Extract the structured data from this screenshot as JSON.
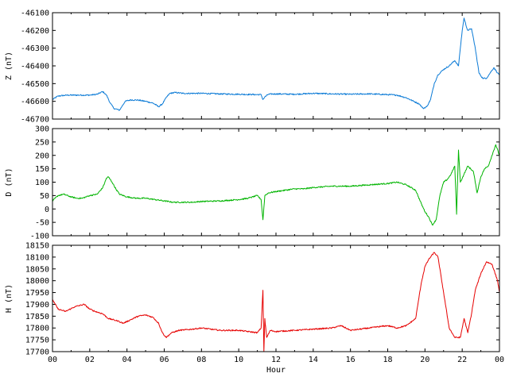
{
  "chart_data": [
    {
      "type": "line",
      "ylabel": "Z (nT)",
      "ylim": [
        -46700,
        -46100
      ],
      "yticks": [
        -46100,
        -46200,
        -46300,
        -46400,
        -46500,
        -46600,
        -46700
      ],
      "xlim": [
        0,
        24
      ],
      "color": "#0a7ad6",
      "series": [
        {
          "x": [
            0,
            0.3,
            0.8,
            1.5,
            2.0,
            2.4,
            2.7,
            2.9,
            3.1,
            3.3,
            3.6,
            3.9,
            4.2,
            4.6,
            5.0,
            5.4,
            5.7,
            5.9,
            6.1,
            6.3,
            6.6,
            7.0,
            8.0,
            9.0,
            10.0,
            11.0,
            11.2,
            11.3,
            11.4,
            11.6,
            12.0,
            13.0,
            14.0,
            15.0,
            16.0,
            17.0,
            18.0,
            18.5,
            19.0,
            19.4,
            19.7,
            19.9,
            20.1,
            20.3,
            20.5,
            20.7,
            21.0,
            21.3,
            21.6,
            21.8,
            21.9,
            22.0,
            22.1,
            22.2,
            22.3,
            22.5,
            22.7,
            22.9,
            23.1,
            23.3,
            23.5,
            23.7,
            23.9,
            24.0
          ],
          "y": [
            -46590,
            -46570,
            -46565,
            -46565,
            -46565,
            -46560,
            -46545,
            -46565,
            -46610,
            -46640,
            -46650,
            -46600,
            -46592,
            -46593,
            -46600,
            -46610,
            -46630,
            -46615,
            -46580,
            -46555,
            -46550,
            -46555,
            -46555,
            -46558,
            -46560,
            -46562,
            -46562,
            -46590,
            -46575,
            -46560,
            -46558,
            -46560,
            -46555,
            -46558,
            -46560,
            -46558,
            -46562,
            -46565,
            -46580,
            -46600,
            -46615,
            -46640,
            -46630,
            -46590,
            -46500,
            -46450,
            -46420,
            -46400,
            -46370,
            -46400,
            -46300,
            -46200,
            -46130,
            -46170,
            -46200,
            -46190,
            -46300,
            -46440,
            -46470,
            -46470,
            -46440,
            -46410,
            -46440,
            -46450
          ]
        }
      ]
    },
    {
      "type": "line",
      "ylabel": "D (nT)",
      "ylim": [
        -100,
        300
      ],
      "yticks": [
        300,
        250,
        200,
        150,
        100,
        50,
        0,
        -50,
        -100
      ],
      "xlim": [
        0,
        24
      ],
      "color": "#00b400",
      "series": [
        {
          "x": [
            0,
            0.3,
            0.6,
            1.0,
            1.3,
            1.6,
            2.0,
            2.4,
            2.7,
            2.9,
            3.0,
            3.2,
            3.4,
            3.6,
            4.0,
            4.5,
            5.0,
            5.5,
            6.0,
            6.5,
            7.0,
            7.5,
            8.0,
            9.0,
            10.0,
            10.5,
            11.0,
            11.2,
            11.3,
            11.4,
            11.6,
            12.0,
            12.5,
            13.0,
            13.5,
            14.0,
            15.0,
            16.0,
            17.0,
            18.0,
            18.5,
            19.0,
            19.5,
            19.8,
            20.0,
            20.2,
            20.4,
            20.6,
            20.8,
            21.0,
            21.2,
            21.4,
            21.6,
            21.7,
            21.8,
            21.9,
            22.1,
            22.3,
            22.6,
            22.8,
            23.0,
            23.2,
            23.4,
            23.6,
            23.8,
            24.0
          ],
          "y": [
            30,
            50,
            55,
            45,
            40,
            40,
            50,
            55,
            80,
            115,
            120,
            100,
            75,
            55,
            45,
            40,
            40,
            35,
            30,
            25,
            25,
            25,
            28,
            30,
            35,
            40,
            50,
            35,
            -40,
            50,
            60,
            65,
            70,
            75,
            75,
            80,
            85,
            85,
            90,
            95,
            100,
            90,
            70,
            20,
            -10,
            -30,
            -60,
            -40,
            50,
            100,
            110,
            130,
            160,
            -20,
            220,
            100,
            130,
            160,
            140,
            60,
            120,
            150,
            160,
            200,
            240,
            200
          ]
        }
      ]
    },
    {
      "type": "line",
      "ylabel": "H (nT)",
      "ylim": [
        17700,
        18150
      ],
      "yticks": [
        18150,
        18100,
        18050,
        18000,
        17950,
        17900,
        17850,
        17800,
        17750,
        17700
      ],
      "xlim": [
        0,
        24
      ],
      "xlabel": "Hour",
      "xtick_labels": [
        "00",
        "02",
        "04",
        "06",
        "08",
        "10",
        "12",
        "14",
        "16",
        "18",
        "20",
        "22",
        "00"
      ],
      "color": "#e60000",
      "series": [
        {
          "x": [
            0,
            0.3,
            0.7,
            1.2,
            1.7,
            2.0,
            2.3,
            2.7,
            3.0,
            3.5,
            3.8,
            4.2,
            4.6,
            5.0,
            5.4,
            5.7,
            5.9,
            6.1,
            6.4,
            6.8,
            7.5,
            8.0,
            9.0,
            10.0,
            11.0,
            11.2,
            11.3,
            11.35,
            11.4,
            11.5,
            11.7,
            12.0,
            13.0,
            14.0,
            15.0,
            15.5,
            16.0,
            17.0,
            18.0,
            18.5,
            19.0,
            19.5,
            19.8,
            20.0,
            20.2,
            20.5,
            20.7,
            21.0,
            21.3,
            21.6,
            21.9,
            22.1,
            22.3,
            22.5,
            22.7,
            23.0,
            23.3,
            23.6,
            23.9,
            24.0
          ],
          "y": [
            17920,
            17880,
            17870,
            17890,
            17900,
            17880,
            17870,
            17860,
            17840,
            17830,
            17820,
            17835,
            17850,
            17855,
            17845,
            17820,
            17780,
            17760,
            17780,
            17790,
            17795,
            17800,
            17790,
            17790,
            17780,
            17800,
            17960,
            17700,
            17840,
            17760,
            17790,
            17785,
            17790,
            17795,
            17800,
            17810,
            17790,
            17800,
            17810,
            17800,
            17810,
            17840,
            17990,
            18060,
            18090,
            18120,
            18100,
            17950,
            17800,
            17760,
            17760,
            17840,
            17780,
            17860,
            17960,
            18030,
            18080,
            18070,
            18000,
            17950
          ]
        }
      ]
    }
  ]
}
